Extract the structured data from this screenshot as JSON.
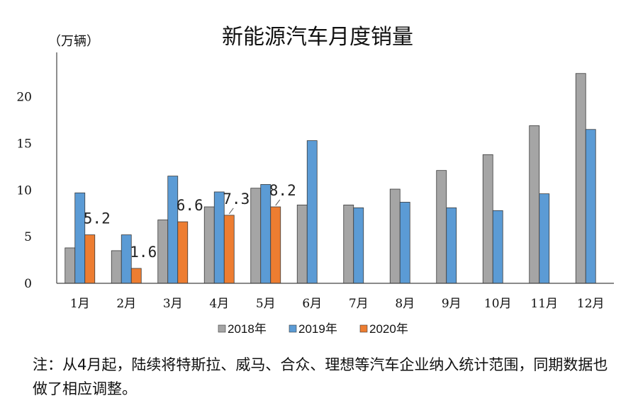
{
  "chart_data": {
    "type": "bar",
    "title": "新能源汽车月度销量",
    "ylabel": "（万辆）",
    "xlabel": "",
    "ylim": [
      0,
      24
    ],
    "yticks": [
      0,
      5,
      10,
      15,
      20
    ],
    "grid": false,
    "legend_position": "bottom",
    "categories": [
      "1月",
      "2月",
      "3月",
      "4月",
      "5月",
      "6月",
      "7月",
      "8月",
      "9月",
      "10月",
      "11月",
      "12月"
    ],
    "series": [
      {
        "name": "2018年",
        "color": "#a5a5a5",
        "values": [
          3.8,
          3.5,
          6.8,
          8.2,
          10.2,
          8.4,
          8.4,
          10.1,
          12.1,
          13.8,
          16.9,
          22.5
        ]
      },
      {
        "name": "2019年",
        "color": "#5b9bd5",
        "values": [
          9.7,
          5.2,
          11.5,
          9.8,
          10.6,
          15.3,
          8.1,
          8.7,
          8.1,
          7.8,
          9.6,
          16.5
        ]
      },
      {
        "name": "2020年",
        "color": "#ed7d31",
        "values": [
          5.2,
          1.6,
          6.6,
          7.3,
          8.2,
          null,
          null,
          null,
          null,
          null,
          null,
          null
        ]
      }
    ],
    "data_labels": [
      {
        "series": 2,
        "index": 0,
        "text": "5.2"
      },
      {
        "series": 2,
        "index": 1,
        "text": "1.6"
      },
      {
        "series": 2,
        "index": 2,
        "text": "6.6"
      },
      {
        "series": 2,
        "index": 3,
        "text": "7.3"
      },
      {
        "series": 2,
        "index": 4,
        "text": "8.2"
      }
    ]
  },
  "note": "注：从4月起，陆续将特斯拉、威马、合众、理想等汽车企业纳入统计范围，同期数据也做了相应调整。"
}
